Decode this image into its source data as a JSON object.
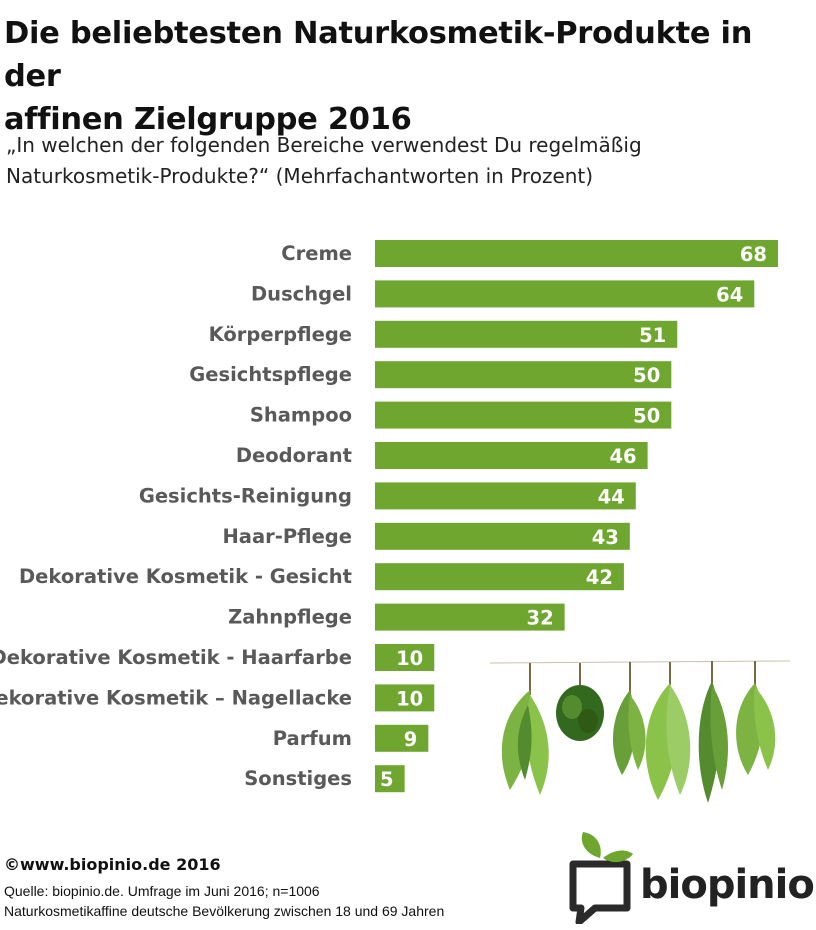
{
  "header": {
    "title_line1": "Die beliebtesten Naturkosmetik-Produkte in der",
    "title_line2": "affinen Zielgruppe 2016",
    "subtitle_line1": "„In welchen der folgenden Bereiche verwendest Du regelmäßig",
    "subtitle_line2": "Naturkosmetik-Produkte?“ (Mehrfachantworten in Prozent)"
  },
  "chart_data": {
    "type": "bar",
    "orientation": "horizontal",
    "categories": [
      "Creme",
      "Duschgel",
      "Körperpflege",
      "Gesichtspflege",
      "Shampoo",
      "Deodorant",
      "Gesichts-Reinigung",
      "Haar-Pflege",
      "Dekorative Kosmetik - Gesicht",
      "Zahnpflege",
      "Dekorative Kosmetik - Haarfarbe",
      "Dekorative Kosmetik – Nagellacke",
      "Parfum",
      "Sonstiges"
    ],
    "values": [
      68,
      64,
      51,
      50,
      50,
      46,
      44,
      43,
      42,
      32,
      10,
      10,
      9,
      5
    ],
    "xlim": [
      0,
      68
    ],
    "grid": false,
    "data_labels": true,
    "bar_color": "#6ea62f",
    "label_color": "#595959"
  },
  "footer": {
    "copyright": "©www.biopinio.de 2016",
    "source_line1": "Quelle: biopinio.de. Umfrage im Juni 2016; n=1006",
    "source_line2": "Naturkosmetikaffine deutsche Bevölkerung zwischen 18 und 69 Jahren"
  },
  "logo": {
    "text": "biopinio",
    "leaf_color": "#6ea62f"
  }
}
